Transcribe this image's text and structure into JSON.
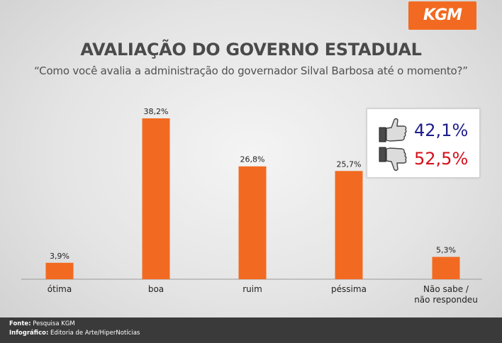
{
  "logo": "KGM",
  "chart_data": {
    "type": "bar",
    "title": "AVALIAÇÃO DO GOVERNO ESTADUAL",
    "subtitle": "“Como você avalia a administração do governador Silval Barbosa até o momento?”",
    "categories": [
      "ótima",
      "boa",
      "ruim",
      "péssima",
      "Não sabe / não respondeu"
    ],
    "category_lines": [
      [
        "ótima"
      ],
      [
        "boa"
      ],
      [
        "ruim"
      ],
      [
        "péssima"
      ],
      [
        "Não sabe /",
        "não respondeu"
      ]
    ],
    "values": [
      3.9,
      38.2,
      26.8,
      25.7,
      5.3
    ],
    "value_labels": [
      "3,9%",
      "38,2%",
      "26,8%",
      "25,7%",
      "5,3%"
    ],
    "unit": "%",
    "bar_color": "#f26a21",
    "grid": false,
    "legend": "none"
  },
  "approval": {
    "positive": {
      "icon": "thumbs-up-icon",
      "value": "42,1%",
      "color": "#1d1d8a"
    },
    "negative": {
      "icon": "thumbs-down-icon",
      "value": "52,5%",
      "color": "#d4101b"
    }
  },
  "footer": {
    "source_label": "Fonte:",
    "source_value": "Pesquisa KGM",
    "credit_label": "Infográfico:",
    "credit_value": "Editoria de Arte/HiperNotícias"
  }
}
